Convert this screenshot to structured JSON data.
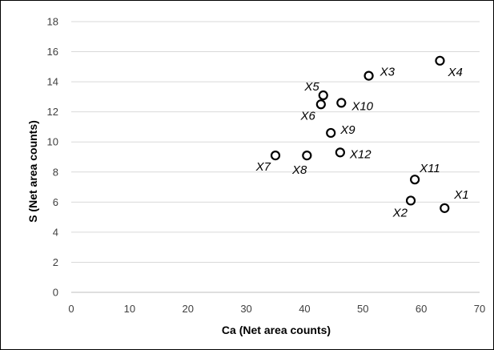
{
  "chart_data": {
    "type": "scatter",
    "title": "",
    "xlabel": "Ca (Net area counts)",
    "ylabel": "S (Net area counts)",
    "xlim": [
      0,
      70
    ],
    "ylim": [
      0,
      18
    ],
    "xticks": [
      0,
      10,
      20,
      30,
      40,
      50,
      60,
      70
    ],
    "yticks": [
      0,
      2,
      4,
      6,
      8,
      10,
      12,
      14,
      16,
      18
    ],
    "grid": "horizontal",
    "legend": "none",
    "marker": "open-circle",
    "marker_color": "#000000",
    "grid_color": "#d9d9d9",
    "points": [
      {
        "label": "X1",
        "x": 64.0,
        "y": 5.6
      },
      {
        "label": "X2",
        "x": 58.2,
        "y": 6.1
      },
      {
        "label": "X3",
        "x": 51.0,
        "y": 14.4
      },
      {
        "label": "X4",
        "x": 63.2,
        "y": 15.4
      },
      {
        "label": "X5",
        "x": 43.2,
        "y": 13.1
      },
      {
        "label": "X6",
        "x": 42.8,
        "y": 12.5
      },
      {
        "label": "X7",
        "x": 35.0,
        "y": 9.1
      },
      {
        "label": "X8",
        "x": 40.4,
        "y": 9.1
      },
      {
        "label": "X9",
        "x": 44.5,
        "y": 10.6
      },
      {
        "label": "X10",
        "x": 46.3,
        "y": 12.6
      },
      {
        "label": "X11",
        "x": 58.9,
        "y": 7.5
      },
      {
        "label": "X12",
        "x": 46.1,
        "y": 9.3
      }
    ]
  }
}
